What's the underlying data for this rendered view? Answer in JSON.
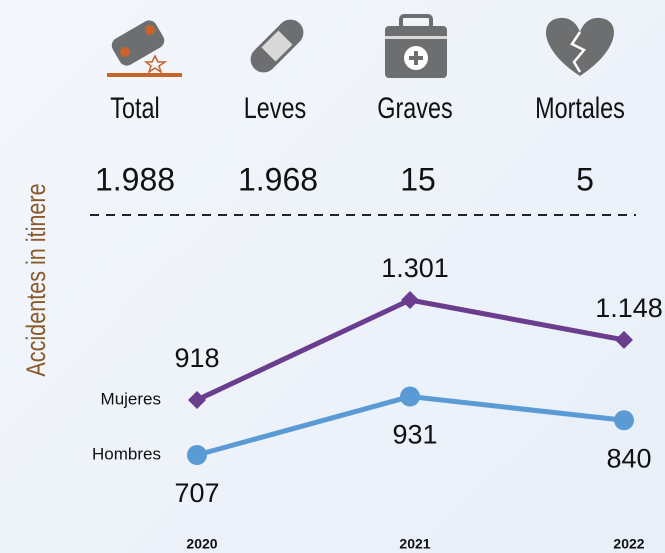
{
  "stats": [
    {
      "label": "Total",
      "value": "1.988"
    },
    {
      "label": "Leves",
      "value": "1.968"
    },
    {
      "label": "Graves",
      "value": "15"
    },
    {
      "label": "Mortales",
      "value": "5"
    }
  ],
  "chart_data": {
    "type": "line",
    "ylabel": "Accidentes in itinere",
    "categories": [
      "2020",
      "2021",
      "2022"
    ],
    "series": [
      {
        "name": "Mujeres",
        "color": "#6a3d8f",
        "marker": "diamond",
        "values": [
          918,
          1301,
          1148
        ],
        "value_labels": [
          "918",
          "1.301",
          "1.148"
        ]
      },
      {
        "name": "Hombres",
        "color": "#5b9bd5",
        "marker": "circle",
        "values": [
          707,
          931,
          840
        ],
        "value_labels": [
          "707",
          "931",
          "840"
        ]
      }
    ]
  }
}
